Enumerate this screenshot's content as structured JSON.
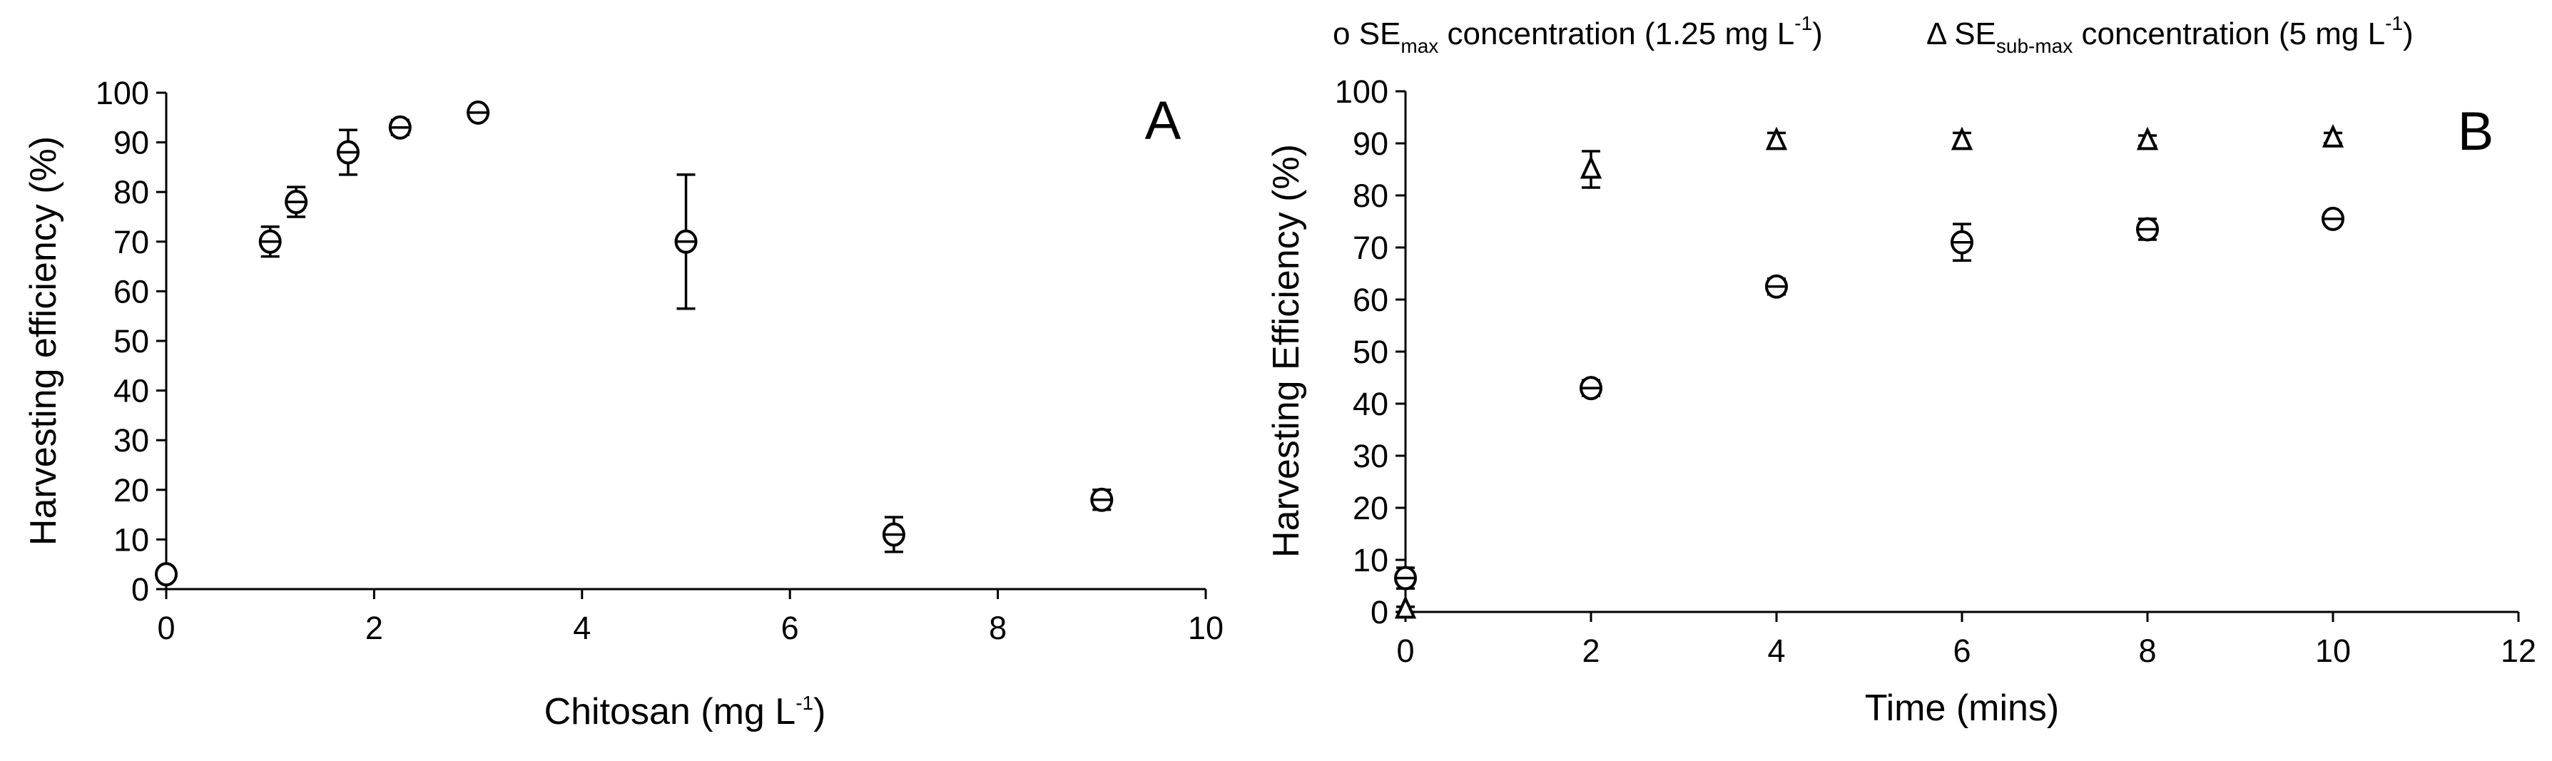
{
  "chart_data": [
    {
      "type": "scatter",
      "panel_label": "A",
      "xlabel": "Chitosan  (mg L",
      "xlabel_sup": "-1",
      "xlabel_suffix": ")",
      "ylabel": "Harvesting efficiency (%)",
      "xlim": [
        0,
        10
      ],
      "ylim": [
        0,
        100
      ],
      "xticks": [
        0,
        2,
        4,
        6,
        8,
        10
      ],
      "yticks": [
        0,
        10,
        20,
        30,
        40,
        50,
        60,
        70,
        80,
        90,
        100
      ],
      "series": [
        {
          "marker": "circle",
          "x": [
            0,
            1,
            1.25,
            1.75,
            2.25,
            3,
            5,
            7,
            9
          ],
          "y": [
            3,
            70,
            78,
            88,
            93,
            96,
            70,
            11,
            18
          ],
          "err": [
            0,
            3,
            3,
            4.5,
            1.5,
            1,
            13.5,
            3.5,
            2
          ]
        }
      ]
    },
    {
      "type": "scatter",
      "panel_label": "B",
      "xlabel": "Time (mins)",
      "ylabel": "Harvesting Efficiency (%)",
      "xlim": [
        0,
        12
      ],
      "ylim": [
        0,
        100
      ],
      "xticks": [
        0,
        2,
        4,
        6,
        8,
        10,
        12
      ],
      "yticks": [
        0,
        10,
        20,
        30,
        40,
        50,
        60,
        70,
        80,
        90,
        100
      ],
      "legend": {
        "placement": "top",
        "items": [
          {
            "symbol": "o",
            "prefix": "SE",
            "sub": "max",
            "text": " concentration (1.25 mg L",
            "sup": "-1",
            "suffix": ")"
          },
          {
            "symbol": "Δ",
            "prefix": "SE",
            "sub": "sub-max",
            "text": " concentration (5 mg L",
            "sup": "-1",
            "suffix": ")"
          }
        ]
      },
      "series": [
        {
          "marker": "circle",
          "x": [
            0,
            2,
            4,
            6,
            8,
            10
          ],
          "y": [
            6.5,
            43,
            62.5,
            71,
            73.5,
            75.5
          ],
          "err": [
            2,
            1.5,
            1.5,
            3.5,
            2,
            1
          ]
        },
        {
          "marker": "triangle",
          "x": [
            0,
            2,
            4,
            6,
            8,
            10
          ],
          "y": [
            0.5,
            85,
            90.5,
            90.5,
            90.5,
            91
          ],
          "err": [
            0.5,
            3.5,
            1.5,
            1.5,
            1,
            1
          ]
        }
      ]
    }
  ]
}
